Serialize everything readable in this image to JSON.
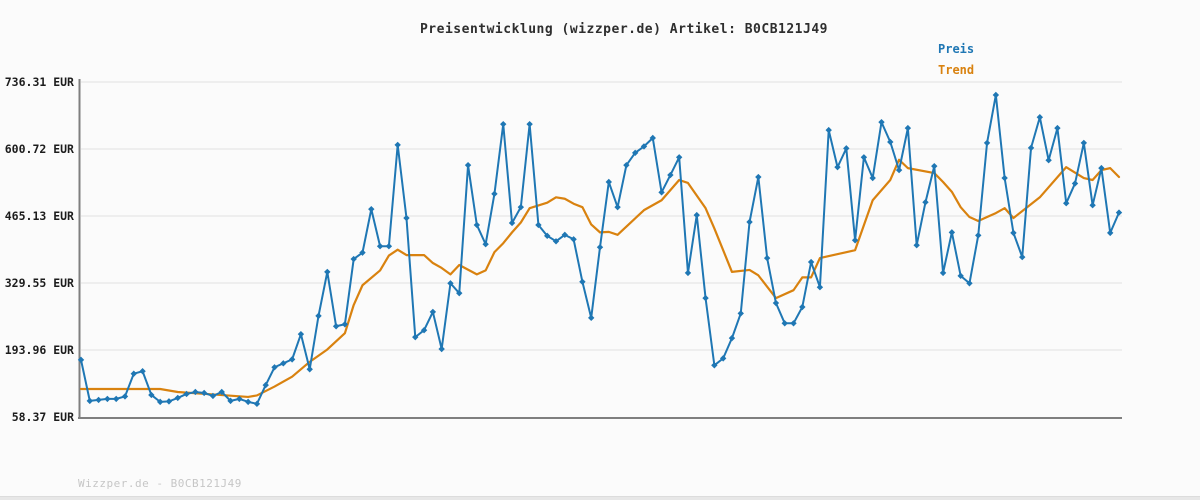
{
  "title": "Preisentwicklung (wizzper.de) Artikel: B0CB121J49",
  "legend": {
    "price_label": "Preis",
    "trend_label": "Trend"
  },
  "watermark": "Wizzper.de - B0CB121J49",
  "colors": {
    "price": "#1f77b4",
    "trend": "#d9820f",
    "grid": "#e7e7e7",
    "axis": "#7f7f7f",
    "tick_label": "#1c1c1c",
    "background": "#fbfbfb",
    "watermark": "#c6c6c6"
  },
  "chart_data": {
    "type": "line",
    "title": "Preisentwicklung (wizzper.de) Artikel: B0CB121J49",
    "unit": "EUR",
    "ylim": [
      58.37,
      736.31
    ],
    "y_ticks": [
      736.31,
      600.72,
      465.13,
      329.55,
      193.96,
      58.37
    ],
    "y_tick_labels": [
      "736.31 EUR",
      "600.72 EUR",
      "465.13 EUR",
      "329.55 EUR",
      "193.96 EUR",
      "58.37 EUR"
    ],
    "x_tick_labels": [],
    "grid": "horizontal",
    "legend_position": "top-right",
    "series": [
      {
        "name": "Preis",
        "color": "#1f77b4",
        "marker": "diamond",
        "values": [
          174,
          91,
          93,
          95,
          95,
          100,
          146,
          151,
          103,
          89,
          90,
          97,
          105,
          109,
          107,
          101,
          109,
          91,
          95,
          89,
          85,
          123,
          159,
          167,
          175,
          226,
          155,
          263,
          352,
          242,
          246,
          378,
          391,
          479,
          404,
          404,
          609,
          461,
          220,
          234,
          271,
          196,
          329,
          309,
          568,
          447,
          408,
          510,
          651,
          451,
          483,
          651,
          447,
          425,
          414,
          427,
          418,
          332,
          259,
          402,
          534,
          483,
          568,
          593,
          606,
          623,
          513,
          548,
          584,
          350,
          467,
          299,
          163,
          177,
          218,
          268,
          453,
          544,
          380,
          289,
          248,
          248,
          281,
          372,
          321,
          639,
          564,
          602,
          416,
          584,
          542,
          655,
          615,
          558,
          643,
          406,
          493,
          566,
          350,
          432,
          344,
          329,
          426,
          613,
          710,
          542,
          431,
          382,
          603,
          665,
          578,
          643,
          491,
          531,
          613,
          487,
          562,
          431,
          472
        ]
      },
      {
        "name": "Trend",
        "color": "#d9820f",
        "marker": "none",
        "points": [
          [
            0,
            115
          ],
          [
            9,
            115
          ],
          [
            11,
            109
          ],
          [
            15,
            104
          ],
          [
            19,
            99
          ],
          [
            20,
            102
          ],
          [
            22,
            120
          ],
          [
            24,
            140
          ],
          [
            26,
            170
          ],
          [
            28,
            195
          ],
          [
            30,
            228
          ],
          [
            31,
            285
          ],
          [
            32,
            325
          ],
          [
            34,
            355
          ],
          [
            35,
            385
          ],
          [
            36,
            397
          ],
          [
            37,
            386
          ],
          [
            39,
            386
          ],
          [
            40,
            370
          ],
          [
            41,
            360
          ],
          [
            42,
            347
          ],
          [
            43,
            366
          ],
          [
            45,
            347
          ],
          [
            46,
            355
          ],
          [
            47,
            392
          ],
          [
            48,
            410
          ],
          [
            49,
            432
          ],
          [
            50,
            452
          ],
          [
            51,
            481
          ],
          [
            53,
            492
          ],
          [
            54,
            503
          ],
          [
            55,
            500
          ],
          [
            56,
            490
          ],
          [
            57,
            483
          ],
          [
            58,
            448
          ],
          [
            59,
            432
          ],
          [
            60,
            433
          ],
          [
            61,
            427
          ],
          [
            64,
            477
          ],
          [
            66,
            497
          ],
          [
            68,
            538
          ],
          [
            69,
            532
          ],
          [
            71,
            481
          ],
          [
            72,
            440
          ],
          [
            74,
            352
          ],
          [
            76,
            356
          ],
          [
            77,
            345
          ],
          [
            79,
            299
          ],
          [
            81,
            315
          ],
          [
            82,
            341
          ],
          [
            83,
            341
          ],
          [
            84,
            380
          ],
          [
            87,
            392
          ],
          [
            88,
            396
          ],
          [
            90,
            497
          ],
          [
            92,
            538
          ],
          [
            93,
            579
          ],
          [
            94,
            562
          ],
          [
            97,
            552
          ],
          [
            98,
            534
          ],
          [
            99,
            514
          ],
          [
            100,
            483
          ],
          [
            101,
            463
          ],
          [
            102,
            455
          ],
          [
            103,
            463
          ],
          [
            104,
            471
          ],
          [
            105,
            481
          ],
          [
            106,
            461
          ],
          [
            109,
            503
          ],
          [
            112,
            564
          ],
          [
            114,
            542
          ],
          [
            115,
            538
          ],
          [
            116,
            558
          ],
          [
            117,
            562
          ],
          [
            118,
            544
          ]
        ]
      }
    ]
  }
}
